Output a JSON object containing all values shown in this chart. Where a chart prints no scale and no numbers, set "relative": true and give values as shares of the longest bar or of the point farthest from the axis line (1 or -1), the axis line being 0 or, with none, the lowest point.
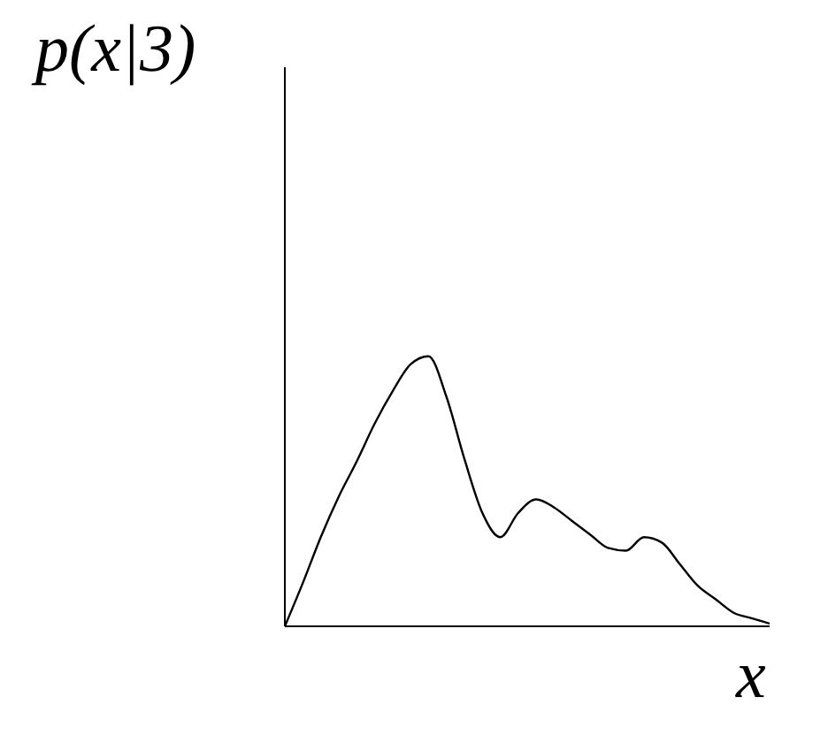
{
  "chart_data": {
    "type": "line",
    "relative": true,
    "xlabel": "x",
    "ylabel": "p(x|3)",
    "categories": [
      null,
      null,
      null,
      null,
      null,
      null,
      null,
      null,
      null,
      null,
      null,
      null,
      null,
      null,
      null,
      null,
      null,
      null,
      null,
      null,
      null,
      null,
      null,
      null,
      null,
      null,
      null,
      null
    ],
    "series": [
      {
        "color": "#000000",
        "values": [
          0,
          0.16,
          0.33,
          0.48,
          0.61,
          0.75,
          0.87,
          0.97,
          1,
          0.85,
          0.62,
          0.42,
          0.33,
          0.42,
          0.47,
          0.44,
          0.39,
          0.34,
          0.29,
          0.28,
          0.33,
          0.31,
          0.23,
          0.15,
          0.1,
          0.05,
          0.03,
          0.01
        ]
      }
    ],
    "marker": "none",
    "line_style": "solid"
  }
}
